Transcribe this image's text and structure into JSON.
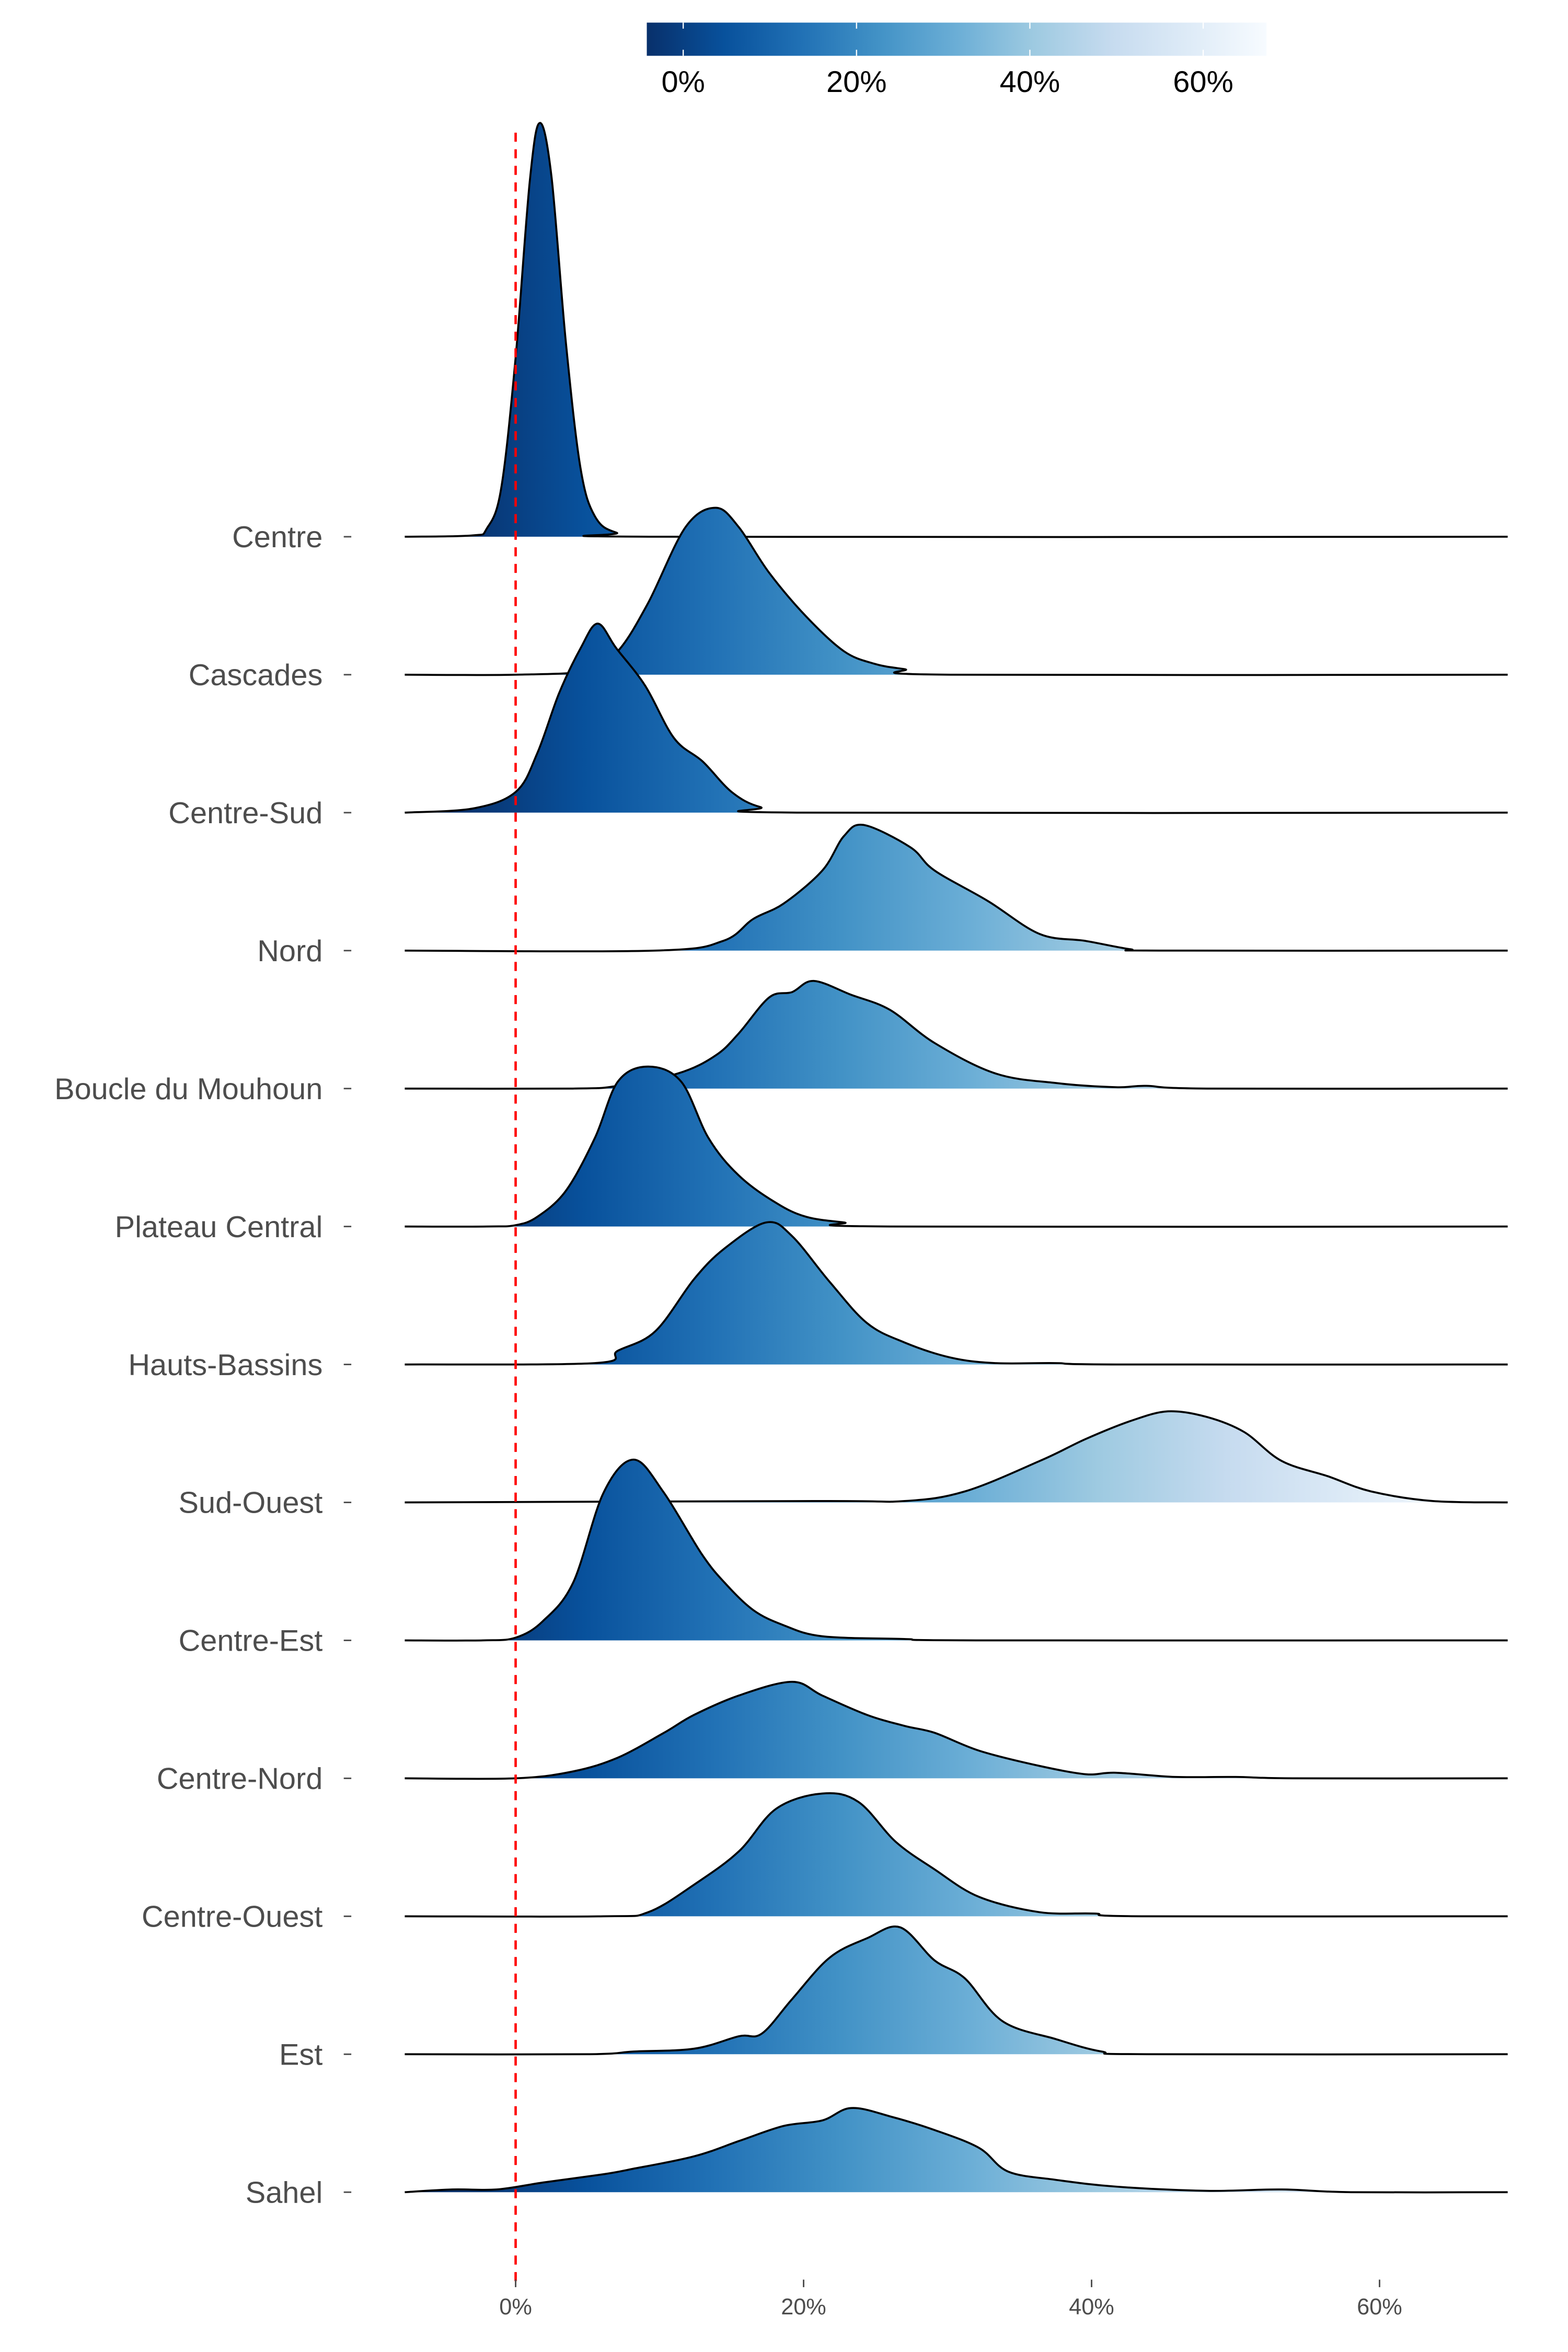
{
  "chart_data": {
    "type": "ridgeline",
    "title": "",
    "xlabel": "",
    "ylabel": "",
    "xlim": [
      -7.7,
      68.9
    ],
    "x_ticks": [
      0,
      20,
      40,
      60
    ],
    "x_tick_labels": [
      "0%",
      "20%",
      "40%",
      "60%"
    ],
    "reference_line": {
      "x": 0,
      "color": "#ff0000",
      "style": "dashed"
    },
    "colorbar": {
      "position": "top",
      "range": [
        -4.2,
        67.3
      ],
      "ticks": [
        0,
        20,
        40,
        60
      ],
      "tick_labels": [
        "0%",
        "20%",
        "40%",
        "60%"
      ],
      "palette": [
        "#08306b",
        "#08519c",
        "#2171b5",
        "#4292c6",
        "#6baed6",
        "#9ecae1",
        "#c6dbef",
        "#deebf7",
        "#f7fbff"
      ]
    },
    "density_scale_note_units": "height relative to row spacing",
    "series": [
      {
        "name": "Centre",
        "points": [
          [
            -7.7,
            0
          ],
          [
            -3,
            0.01
          ],
          [
            -2,
            0.06
          ],
          [
            -1,
            0.35
          ],
          [
            0,
            1.3
          ],
          [
            1,
            2.6
          ],
          [
            1.7,
            3.0
          ],
          [
            2.5,
            2.6
          ],
          [
            3.5,
            1.4
          ],
          [
            4.5,
            0.5
          ],
          [
            5.5,
            0.15
          ],
          [
            7,
            0.03
          ],
          [
            10,
            0
          ],
          [
            68.9,
            0
          ]
        ]
      },
      {
        "name": "Cascades",
        "points": [
          [
            -7.7,
            0
          ],
          [
            0,
            0
          ],
          [
            5,
            0.03
          ],
          [
            7.1,
            0.17
          ],
          [
            9.2,
            0.52
          ],
          [
            11.8,
            1.07
          ],
          [
            13.9,
            1.21
          ],
          [
            15.5,
            1.07
          ],
          [
            17.6,
            0.74
          ],
          [
            20.2,
            0.42
          ],
          [
            22.8,
            0.17
          ],
          [
            24.9,
            0.08
          ],
          [
            27,
            0.04
          ],
          [
            30.2,
            0
          ],
          [
            68.9,
            0
          ]
        ]
      },
      {
        "name": "Centre-Sud",
        "points": [
          [
            -7.7,
            0
          ],
          [
            -3,
            0.03
          ],
          [
            0,
            0.15
          ],
          [
            1.5,
            0.43
          ],
          [
            3,
            0.86
          ],
          [
            4.5,
            1.19
          ],
          [
            5.7,
            1.37
          ],
          [
            7,
            1.19
          ],
          [
            9,
            0.92
          ],
          [
            11,
            0.54
          ],
          [
            13,
            0.37
          ],
          [
            15,
            0.15
          ],
          [
            17,
            0.04
          ],
          [
            20,
            0
          ],
          [
            68.9,
            0
          ]
        ]
      },
      {
        "name": "Nord",
        "points": [
          [
            -7.7,
            0
          ],
          [
            9.7,
            0
          ],
          [
            14.4,
            0.07
          ],
          [
            16.5,
            0.23
          ],
          [
            18.6,
            0.34
          ],
          [
            21.3,
            0.58
          ],
          [
            22.8,
            0.83
          ],
          [
            24.2,
            0.91
          ],
          [
            27.4,
            0.75
          ],
          [
            29.1,
            0.58
          ],
          [
            32.8,
            0.36
          ],
          [
            36.4,
            0.12
          ],
          [
            39.6,
            0.07
          ],
          [
            42.7,
            0.01
          ],
          [
            44.7,
            0
          ],
          [
            68.9,
            0
          ]
        ]
      },
      {
        "name": "Boucle du Mouhoun",
        "points": [
          [
            -7.7,
            0
          ],
          [
            4,
            0
          ],
          [
            7.1,
            0.02
          ],
          [
            11.3,
            0.11
          ],
          [
            13.9,
            0.24
          ],
          [
            15.5,
            0.4
          ],
          [
            17.6,
            0.66
          ],
          [
            19.2,
            0.7
          ],
          [
            20.7,
            0.78
          ],
          [
            23.3,
            0.68
          ],
          [
            26,
            0.57
          ],
          [
            29.1,
            0.33
          ],
          [
            33.3,
            0.11
          ],
          [
            37.5,
            0.04
          ],
          [
            41.7,
            0.01
          ],
          [
            43.8,
            0.02
          ],
          [
            48,
            0
          ],
          [
            68.9,
            0
          ]
        ]
      },
      {
        "name": "Plateau Central",
        "points": [
          [
            -7.7,
            0
          ],
          [
            -2,
            0
          ],
          [
            0,
            0.01
          ],
          [
            1.5,
            0.07
          ],
          [
            3.5,
            0.26
          ],
          [
            5.5,
            0.64
          ],
          [
            7.1,
            1.05
          ],
          [
            9.2,
            1.16
          ],
          [
            11.5,
            1.05
          ],
          [
            13.4,
            0.64
          ],
          [
            15.5,
            0.37
          ],
          [
            18.1,
            0.17
          ],
          [
            20.2,
            0.07
          ],
          [
            22.8,
            0.03
          ],
          [
            26,
            0
          ],
          [
            68.9,
            0
          ]
        ]
      },
      {
        "name": "Hauts-Bassins",
        "points": [
          [
            -7.7,
            0
          ],
          [
            5.5,
            0.01
          ],
          [
            7.1,
            0.1
          ],
          [
            9.7,
            0.24
          ],
          [
            12.4,
            0.62
          ],
          [
            14.5,
            0.84
          ],
          [
            17.4,
            1.03
          ],
          [
            19.2,
            0.93
          ],
          [
            21.8,
            0.6
          ],
          [
            24.4,
            0.3
          ],
          [
            27,
            0.16
          ],
          [
            30.2,
            0.05
          ],
          [
            33.3,
            0.01
          ],
          [
            37.5,
            0.01
          ],
          [
            41.7,
            0
          ],
          [
            68.9,
            0
          ]
        ]
      },
      {
        "name": "Sud-Ouest",
        "points": [
          [
            -7.7,
            0
          ],
          [
            20.7,
            0.01
          ],
          [
            27,
            0.01
          ],
          [
            31.2,
            0.08
          ],
          [
            36.4,
            0.3
          ],
          [
            39.6,
            0.46
          ],
          [
            42.7,
            0.59
          ],
          [
            45.3,
            0.66
          ],
          [
            48,
            0.62
          ],
          [
            50.6,
            0.51
          ],
          [
            53.2,
            0.3
          ],
          [
            56.4,
            0.19
          ],
          [
            59.4,
            0.08
          ],
          [
            63.7,
            0.01
          ],
          [
            68.9,
            0
          ]
        ]
      },
      {
        "name": "Centre-Est",
        "points": [
          [
            -7.7,
            0
          ],
          [
            -2.3,
            0
          ],
          [
            0,
            0.02
          ],
          [
            1.9,
            0.14
          ],
          [
            4,
            0.42
          ],
          [
            6.1,
            1.07
          ],
          [
            8.2,
            1.31
          ],
          [
            10.3,
            1.07
          ],
          [
            12.9,
            0.63
          ],
          [
            14.5,
            0.42
          ],
          [
            16.5,
            0.22
          ],
          [
            18.6,
            0.11
          ],
          [
            21.3,
            0.03
          ],
          [
            27,
            0.01
          ],
          [
            32,
            0
          ],
          [
            68.9,
            0
          ]
        ]
      },
      {
        "name": "Centre-Nord",
        "points": [
          [
            -7.7,
            0
          ],
          [
            0,
            0
          ],
          [
            4,
            0.05
          ],
          [
            7.1,
            0.15
          ],
          [
            10.3,
            0.33
          ],
          [
            12.4,
            0.46
          ],
          [
            15.5,
            0.6
          ],
          [
            19.2,
            0.7
          ],
          [
            21.3,
            0.6
          ],
          [
            24.4,
            0.46
          ],
          [
            27,
            0.38
          ],
          [
            29.1,
            0.33
          ],
          [
            32.2,
            0.2
          ],
          [
            36.4,
            0.09
          ],
          [
            39.6,
            0.03
          ],
          [
            41.7,
            0.04
          ],
          [
            45.8,
            0.01
          ],
          [
            50,
            0.01
          ],
          [
            54,
            0
          ],
          [
            68.9,
            0
          ]
        ]
      },
      {
        "name": "Centre-Ouest",
        "points": [
          [
            -7.7,
            0
          ],
          [
            6.1,
            0
          ],
          [
            9.2,
            0.03
          ],
          [
            12.4,
            0.23
          ],
          [
            15.5,
            0.47
          ],
          [
            18.1,
            0.78
          ],
          [
            21.3,
            0.89
          ],
          [
            23.8,
            0.83
          ],
          [
            26.4,
            0.54
          ],
          [
            29.1,
            0.34
          ],
          [
            32.2,
            0.14
          ],
          [
            36.4,
            0.03
          ],
          [
            40.2,
            0.02
          ],
          [
            43.5,
            0
          ],
          [
            68.9,
            0
          ]
        ]
      },
      {
        "name": "Est",
        "points": [
          [
            -7.7,
            0
          ],
          [
            5,
            0
          ],
          [
            8.2,
            0.02
          ],
          [
            12.4,
            0.04
          ],
          [
            15.5,
            0.13
          ],
          [
            17.1,
            0.15
          ],
          [
            19.2,
            0.4
          ],
          [
            21.8,
            0.7
          ],
          [
            24.4,
            0.84
          ],
          [
            26.7,
            0.92
          ],
          [
            29.1,
            0.68
          ],
          [
            31.2,
            0.55
          ],
          [
            33.8,
            0.24
          ],
          [
            37.5,
            0.11
          ],
          [
            40.7,
            0.02
          ],
          [
            43.8,
            0
          ],
          [
            68.9,
            0
          ]
        ]
      },
      {
        "name": "Sahel",
        "points": [
          [
            -7.7,
            0
          ],
          [
            -4.4,
            0.02
          ],
          [
            -1.3,
            0.02
          ],
          [
            1.9,
            0.07
          ],
          [
            6.1,
            0.13
          ],
          [
            8.2,
            0.17
          ],
          [
            12.4,
            0.26
          ],
          [
            15.5,
            0.37
          ],
          [
            18.6,
            0.48
          ],
          [
            21.3,
            0.52
          ],
          [
            23.3,
            0.61
          ],
          [
            26,
            0.55
          ],
          [
            29.1,
            0.45
          ],
          [
            32.2,
            0.32
          ],
          [
            34.2,
            0.15
          ],
          [
            37.5,
            0.09
          ],
          [
            41.7,
            0.04
          ],
          [
            48,
            0.01
          ],
          [
            53.2,
            0.02
          ],
          [
            58,
            0
          ],
          [
            68.9,
            0
          ]
        ]
      }
    ]
  }
}
